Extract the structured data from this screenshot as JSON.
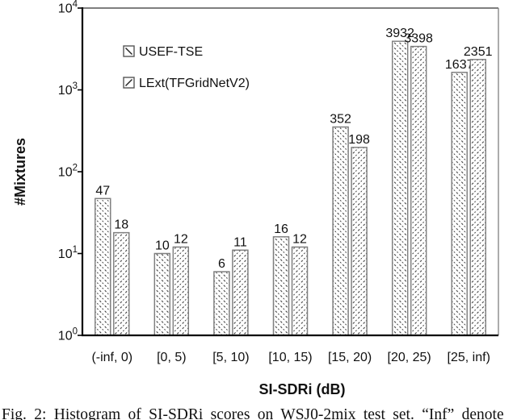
{
  "figure": {
    "caption": "Fig. 2: Histogram of SI-SDRi scores on WSJ0-2mix test set. “Inf” denote"
  },
  "chart_data": {
    "type": "bar",
    "title": "",
    "xlabel": "SI-SDRi (dB)",
    "ylabel": "#Mixtures",
    "y_scale": "log10",
    "ylim": [
      1,
      10000
    ],
    "y_tick_base": "10",
    "y_tick_exponents": [
      0,
      1,
      2,
      3,
      4
    ],
    "grid": "off",
    "legend_position": "upper-left-inside",
    "categories": [
      "(-inf, 0)",
      "[0, 5)",
      "[5, 10)",
      "[10, 15)",
      "[15, 20)",
      "[20, 25)",
      "[25, inf)"
    ],
    "series": [
      {
        "name": "USEF-TSE",
        "hatch": "dashed-downward-diagonal",
        "values": [
          47,
          10,
          6,
          16,
          352,
          3932,
          1637
        ]
      },
      {
        "name": "LExt(TFGridNetV2)",
        "hatch": "dashed-upward-diagonal",
        "values": [
          18,
          12,
          11,
          12,
          198,
          3398,
          2351
        ]
      }
    ],
    "colors": {
      "bar_fill": "#ffffff",
      "bar_border": "#7f7f7f",
      "hatch": "#222222",
      "axis": "#000000",
      "frame": "#7f7f7f",
      "text": "#111111"
    }
  }
}
